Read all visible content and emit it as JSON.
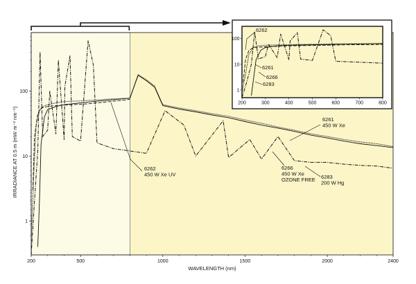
{
  "colors": {
    "main_plot_bg": "#fbf5c8",
    "highlight_region_bg": "#fdfbe6",
    "inset_bg": "#fbf5c8",
    "line": "#111111"
  },
  "chart_data": [
    {
      "type": "line",
      "title": "",
      "xlabel": "WAVELENGTH (nm)",
      "ylabel": "IRRADIANCE AT 0.5 m (mW m⁻² nm⁻¹)",
      "xlim": [
        200,
        2400
      ],
      "ylim": [
        0.3,
        800
      ],
      "y_scale": "log",
      "grid": false,
      "x_ticks": [
        200,
        500,
        1000,
        1500,
        2000,
        2400
      ],
      "y_ticks": [
        1,
        10,
        100
      ],
      "highlight_region": [
        200,
        800
      ],
      "series": [
        {
          "name": "6261",
          "x": [
            200,
            215,
            230,
            250,
            270,
            300,
            350,
            400,
            450,
            500,
            550,
            600,
            650,
            700,
            750,
            800,
            850,
            900,
            950,
            1000,
            1100,
            1200,
            1300,
            1400,
            1500,
            1600,
            1700,
            1800,
            1900,
            2000,
            2100,
            2200,
            2300,
            2400
          ],
          "y": [
            0.5,
            5,
            30,
            50,
            58,
            62,
            66,
            69,
            70,
            71,
            72,
            73,
            75,
            76,
            77,
            78,
            180,
            150,
            120,
            62,
            55,
            50,
            45,
            41,
            36,
            32,
            28,
            25,
            22,
            20,
            18,
            16.5,
            15.5,
            14
          ]
        },
        {
          "name": "6262",
          "x": [
            210,
            220,
            240,
            260,
            300,
            350,
            400,
            450,
            500,
            550,
            600,
            650,
            700,
            750,
            800
          ],
          "y": [
            3,
            20,
            45,
            55,
            58,
            60,
            61,
            62,
            63,
            64,
            66,
            68,
            70,
            72,
            75
          ]
        },
        {
          "name": "6266",
          "x": [
            240,
            250,
            260,
            280,
            300,
            350,
            400,
            450,
            500,
            550,
            600,
            650,
            700,
            750,
            800,
            850,
            900,
            950,
            1000,
            1100,
            1200,
            1300,
            1400,
            1500,
            1600,
            1700,
            1800,
            1900,
            2000,
            2100,
            2200,
            2300,
            2400
          ],
          "y": [
            0.4,
            2,
            15,
            40,
            52,
            58,
            62,
            64,
            66,
            68,
            70,
            72,
            74,
            76,
            78,
            175,
            145,
            115,
            60,
            53,
            48,
            43,
            39,
            34,
            30,
            27,
            24,
            21,
            19,
            17,
            15.5,
            14.5,
            13.5
          ]
        },
        {
          "name": "6283",
          "x": [
            200,
            220,
            240,
            254,
            270,
            300,
            313,
            350,
            365,
            400,
            405,
            436,
            450,
            500,
            546,
            578,
            600,
            700,
            800,
            900,
            1014,
            1128,
            1200,
            1367,
            1400,
            1529,
            1600,
            1700,
            1800,
            1900,
            2000,
            2100,
            2200,
            2300,
            2400
          ],
          "y": [
            0.3,
            2,
            12,
            400,
            20,
            25,
            100,
            22,
            300,
            18,
            120,
            350,
            20,
            17,
            600,
            250,
            16,
            13,
            12,
            11,
            50,
            30,
            10,
            35,
            9.5,
            18,
            9,
            20,
            8.5,
            8,
            8,
            7.5,
            7.2,
            7,
            6.5
          ]
        }
      ],
      "annotations": [
        {
          "target": "6262",
          "lines": [
            "6262",
            "450 W Xe UV"
          ]
        },
        {
          "target": "6261",
          "lines": [
            "6261",
            "450 W Xe"
          ]
        },
        {
          "target": "6266",
          "lines": [
            "6266",
            "450 W Xe",
            "OZONE FREE"
          ]
        },
        {
          "target": "6283",
          "lines": [
            "6283",
            "200 W Hg"
          ]
        }
      ]
    },
    {
      "type": "line",
      "role": "inset",
      "xlim": [
        200,
        800
      ],
      "ylim": [
        0.5,
        300
      ],
      "y_scale": "log",
      "x_ticks": [
        200,
        300,
        400,
        500,
        600,
        700,
        800
      ],
      "y_ticks": [
        1,
        10,
        100
      ],
      "labels": [
        "6262",
        "6261",
        "6266",
        "6283"
      ],
      "series": [
        {
          "name": "6261",
          "x": [
            200,
            215,
            230,
            250,
            270,
            300,
            350,
            400,
            450,
            500,
            550,
            600,
            650,
            700,
            750,
            800
          ],
          "y": [
            0.8,
            4,
            25,
            45,
            52,
            55,
            57,
            58,
            59,
            60,
            61,
            62,
            62,
            63,
            64,
            65
          ]
        },
        {
          "name": "6262",
          "x": [
            205,
            215,
            230,
            250,
            300,
            350,
            400,
            450,
            500,
            550,
            600,
            650,
            700,
            750,
            800
          ],
          "y": [
            2,
            15,
            35,
            45,
            48,
            50,
            52,
            53,
            54,
            55,
            56,
            57,
            58,
            58,
            59
          ]
        },
        {
          "name": "6266",
          "x": [
            240,
            250,
            260,
            280,
            300,
            350,
            400,
            450,
            500,
            550,
            600,
            650,
            700,
            750,
            800
          ],
          "y": [
            0.6,
            3,
            15,
            35,
            45,
            52,
            55,
            56,
            57,
            58,
            60,
            61,
            62,
            63,
            64
          ]
        },
        {
          "name": "6283",
          "x": [
            200,
            220,
            240,
            254,
            270,
            300,
            313,
            350,
            365,
            400,
            405,
            436,
            450,
            500,
            546,
            578,
            600,
            700,
            800
          ],
          "y": [
            0.5,
            2,
            10,
            180,
            16,
            20,
            60,
            18,
            150,
            15,
            80,
            170,
            16,
            14,
            220,
            130,
            13,
            12,
            11
          ]
        }
      ]
    }
  ]
}
